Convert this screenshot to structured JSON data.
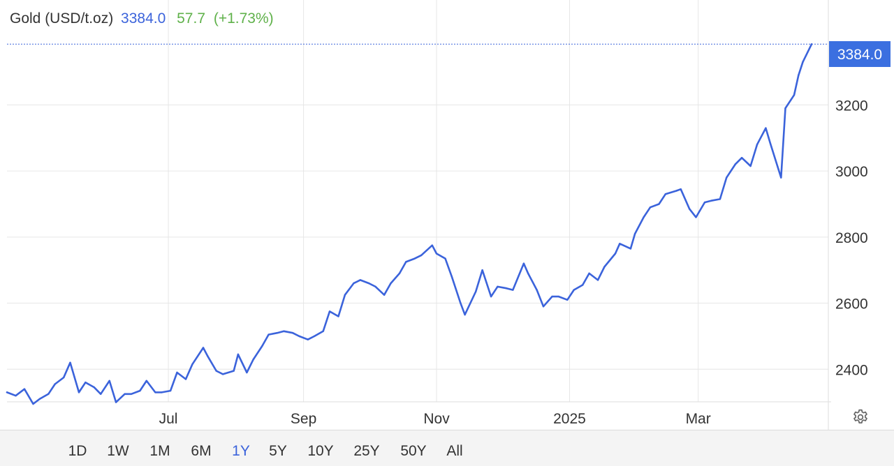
{
  "header": {
    "title": "Gold (USD/t.oz)",
    "price": "3384.0",
    "change": "57.7",
    "change_pct": "(+1.73%)"
  },
  "colors": {
    "line": "#3b63db",
    "positive": "#5fb14a",
    "grid": "#e6e6e6",
    "text": "#333333",
    "price_tag_bg": "#3b6fe0",
    "price_tag_text": "#ffffff"
  },
  "range_buttons": [
    {
      "label": "1D",
      "active": false
    },
    {
      "label": "1W",
      "active": false
    },
    {
      "label": "1M",
      "active": false
    },
    {
      "label": "6M",
      "active": false
    },
    {
      "label": "1Y",
      "active": true
    },
    {
      "label": "5Y",
      "active": false
    },
    {
      "label": "10Y",
      "active": false
    },
    {
      "label": "25Y",
      "active": false
    },
    {
      "label": "50Y",
      "active": false
    },
    {
      "label": "All",
      "active": false
    }
  ],
  "settings_icon": "gear-icon",
  "chart_data": {
    "type": "line",
    "title": "",
    "xlabel": "",
    "ylabel": "",
    "x_range": [
      "2024-04-18",
      "2025-04-22"
    ],
    "ylim": [
      2200,
      3450
    ],
    "grid": true,
    "last_value": "3384.0",
    "x_ticks": [
      {
        "label": "Jul",
        "date": "2024-07-01"
      },
      {
        "label": "Sep",
        "date": "2024-09-01"
      },
      {
        "label": "Nov",
        "date": "2024-11-01"
      },
      {
        "label": "2025",
        "date": "2025-01-01"
      },
      {
        "label": "Mar",
        "date": "2025-03-01"
      }
    ],
    "y_ticks": [
      {
        "label": "2400",
        "value": 2400
      },
      {
        "label": "2600",
        "value": 2600
      },
      {
        "label": "2800",
        "value": 2800
      },
      {
        "label": "3000",
        "value": 3000
      },
      {
        "label": "3200",
        "value": 3200
      }
    ],
    "series": [
      {
        "x": [
          "2024-04-18",
          "2024-04-22",
          "2024-04-26",
          "2024-04-30",
          "2024-05-03",
          "2024-05-07",
          "2024-05-10",
          "2024-05-14",
          "2024-05-17",
          "2024-05-21",
          "2024-05-24",
          "2024-05-28",
          "2024-05-31",
          "2024-06-04",
          "2024-06-07",
          "2024-06-11",
          "2024-06-14",
          "2024-06-18",
          "2024-06-21",
          "2024-06-25",
          "2024-06-28",
          "2024-07-02",
          "2024-07-05",
          "2024-07-09",
          "2024-07-12",
          "2024-07-17",
          "2024-07-19",
          "2024-07-23",
          "2024-07-26",
          "2024-07-31",
          "2024-08-02",
          "2024-08-06",
          "2024-08-09",
          "2024-08-13",
          "2024-08-16",
          "2024-08-20",
          "2024-08-23",
          "2024-08-27",
          "2024-08-30",
          "2024-09-03",
          "2024-09-06",
          "2024-09-10",
          "2024-09-13",
          "2024-09-17",
          "2024-09-20",
          "2024-09-24",
          "2024-09-27",
          "2024-10-01",
          "2024-10-04",
          "2024-10-08",
          "2024-10-11",
          "2024-10-15",
          "2024-10-18",
          "2024-10-22",
          "2024-10-25",
          "2024-10-30",
          "2024-11-01",
          "2024-11-05",
          "2024-11-08",
          "2024-11-12",
          "2024-11-14",
          "2024-11-19",
          "2024-11-22",
          "2024-11-26",
          "2024-11-29",
          "2024-12-03",
          "2024-12-06",
          "2024-12-11",
          "2024-12-13",
          "2024-12-17",
          "2024-12-20",
          "2024-12-24",
          "2024-12-27",
          "2024-12-31",
          "2025-01-03",
          "2025-01-07",
          "2025-01-10",
          "2025-01-14",
          "2025-01-17",
          "2025-01-22",
          "2025-01-24",
          "2025-01-29",
          "2025-01-31",
          "2025-02-04",
          "2025-02-07",
          "2025-02-11",
          "2025-02-14",
          "2025-02-19",
          "2025-02-21",
          "2025-02-25",
          "2025-02-28",
          "2025-03-04",
          "2025-03-07",
          "2025-03-11",
          "2025-03-14",
          "2025-03-18",
          "2025-03-21",
          "2025-03-25",
          "2025-03-28",
          "2025-04-01",
          "2025-04-03",
          "2025-04-08",
          "2025-04-10",
          "2025-04-14",
          "2025-04-16",
          "2025-04-18",
          "2025-04-22"
        ],
        "y": [
          2330,
          2320,
          2340,
          2295,
          2310,
          2325,
          2355,
          2375,
          2420,
          2330,
          2360,
          2345,
          2325,
          2365,
          2300,
          2325,
          2325,
          2335,
          2365,
          2330,
          2330,
          2335,
          2390,
          2370,
          2415,
          2465,
          2440,
          2395,
          2385,
          2395,
          2445,
          2390,
          2430,
          2470,
          2505,
          2510,
          2515,
          2510,
          2500,
          2490,
          2500,
          2515,
          2575,
          2560,
          2625,
          2660,
          2670,
          2660,
          2650,
          2625,
          2660,
          2690,
          2725,
          2735,
          2745,
          2775,
          2750,
          2735,
          2680,
          2600,
          2565,
          2635,
          2700,
          2620,
          2650,
          2645,
          2640,
          2720,
          2690,
          2640,
          2590,
          2620,
          2620,
          2610,
          2640,
          2655,
          2690,
          2670,
          2710,
          2750,
          2780,
          2765,
          2810,
          2860,
          2890,
          2900,
          2930,
          2940,
          2945,
          2885,
          2860,
          2905,
          2910,
          2915,
          2980,
          3020,
          3040,
          3015,
          3080,
          3130,
          3085,
          2980,
          3190,
          3230,
          3290,
          3330,
          3384
        ]
      }
    ]
  }
}
